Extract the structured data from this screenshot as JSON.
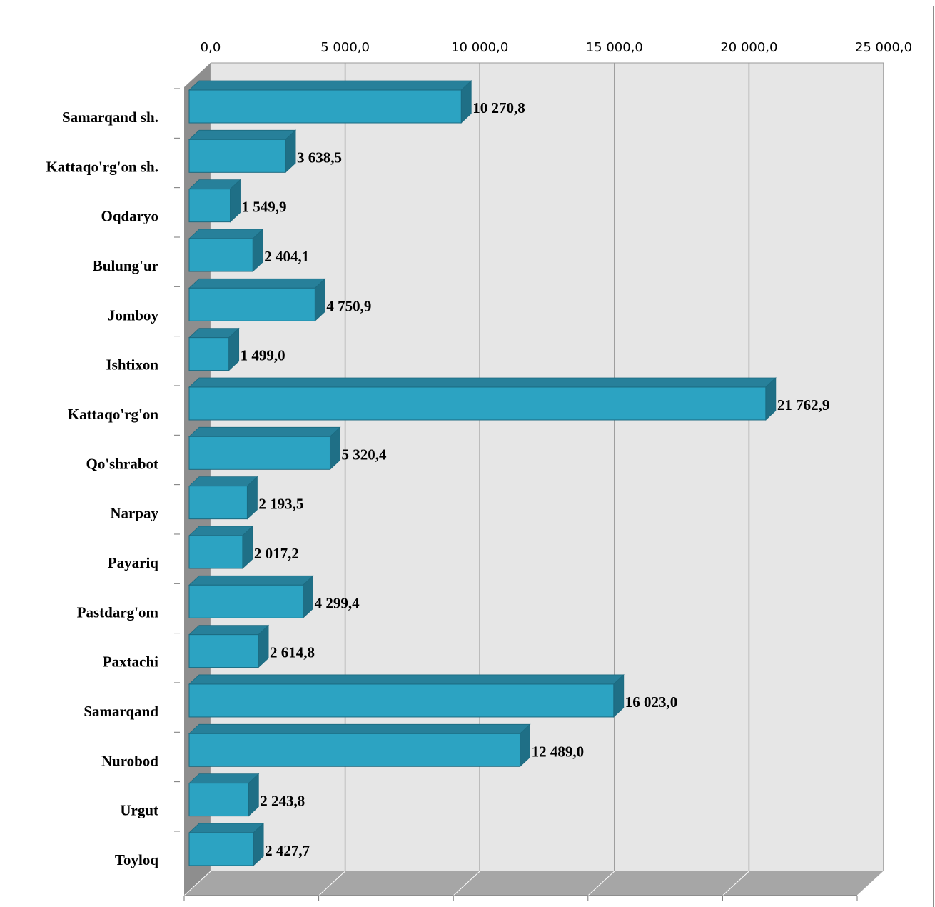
{
  "chart_data": {
    "type": "bar",
    "orientation": "horizontal",
    "style": "3d",
    "categories": [
      "Samarqand sh.",
      "Kattaqo'rg'on sh.",
      "Oqdaryo",
      "Bulung'ur",
      "Jomboy",
      "Ishtixon",
      "Kattaqo'rg'on",
      "Qo'shrabot",
      "Narpay",
      "Payariq",
      "Pastdarg'om",
      "Paxtachi",
      "Samarqand",
      "Nurobod",
      "Urgut",
      "Toyloq"
    ],
    "values": [
      10270.8,
      3638.5,
      1549.9,
      2404.1,
      4750.9,
      1499.0,
      21762.9,
      5320.4,
      2193.5,
      2017.2,
      4299.4,
      2614.8,
      16023.0,
      12489.0,
      2243.8,
      2427.7
    ],
    "data_labels": [
      "10 270,8",
      "3 638,5",
      "1 549,9",
      "2 404,1",
      "4 750,9",
      "1 499,0",
      "21 762,9",
      "5 320,4",
      "2 193,5",
      "2 017,2",
      "4 299,4",
      "2 614,8",
      "16 023,0",
      "12 489,0",
      "2 243,8",
      "2 427,7"
    ],
    "x_ticks": [
      "0,0",
      "5 000,0",
      "10 000,0",
      "15 000,0",
      "20 000,0",
      "25 000,0"
    ],
    "x_tick_values": [
      0,
      5000,
      10000,
      15000,
      20000,
      25000
    ],
    "xlim": [
      0,
      25000
    ],
    "x_axis_position": "top",
    "grid": true,
    "legend": false,
    "colors": {
      "bar_front": "#2ca3c2",
      "bar_top": "#27809a",
      "bar_side": "#1f6f86",
      "bar_border": "#1b6a80",
      "back_wall": "#e6e6e6",
      "floor": "#a6a6a6",
      "side_wall": "#8e8e8e",
      "gridline": "#9a9a9a"
    }
  }
}
